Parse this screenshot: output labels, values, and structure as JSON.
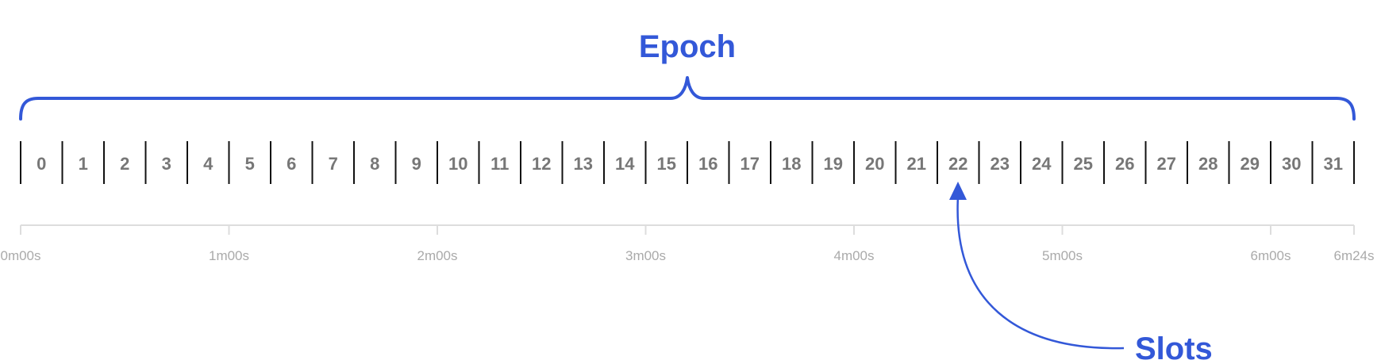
{
  "epoch": {
    "label": "Epoch"
  },
  "slots": {
    "label": "Slots",
    "count": 32,
    "numbers": [
      "0",
      "1",
      "2",
      "3",
      "4",
      "5",
      "6",
      "7",
      "8",
      "9",
      "10",
      "11",
      "12",
      "13",
      "14",
      "15",
      "16",
      "17",
      "18",
      "19",
      "20",
      "21",
      "22",
      "23",
      "24",
      "25",
      "26",
      "27",
      "28",
      "29",
      "30",
      "31"
    ],
    "pointed_slot": "22"
  },
  "timeline": {
    "total_seconds": 384,
    "ticks": [
      {
        "label": "0m00s",
        "seconds": 0
      },
      {
        "label": "1m00s",
        "seconds": 60
      },
      {
        "label": "2m00s",
        "seconds": 120
      },
      {
        "label": "3m00s",
        "seconds": 180
      },
      {
        "label": "4m00s",
        "seconds": 240
      },
      {
        "label": "5m00s",
        "seconds": 300
      },
      {
        "label": "6m00s",
        "seconds": 360
      },
      {
        "label": "6m24s",
        "seconds": 384
      }
    ]
  },
  "colors": {
    "accent": "#3358d8",
    "slot_text": "#777777",
    "divider": "#111111",
    "axis": "#dddddd",
    "time_text": "#aaaaaa"
  }
}
